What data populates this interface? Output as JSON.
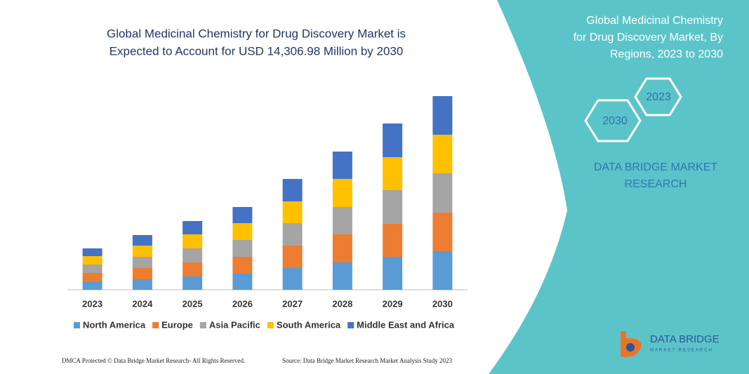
{
  "chart_data": {
    "type": "stacked_bar",
    "title": [
      "Global Medicinal Chemistry for Drug Discovery Market is",
      "Expected to Account for USD 14,306.98 Million by 2030"
    ],
    "categories": [
      "2023",
      "2024",
      "2025",
      "2026",
      "2027",
      "2028",
      "2029",
      "2030"
    ],
    "series": [
      {
        "name": "North America",
        "color": "#5b9bd5",
        "values": [
          12,
          15,
          19,
          23,
          31,
          39,
          47,
          55
        ]
      },
      {
        "name": "Europe",
        "color": "#ed7d31",
        "values": [
          12,
          16,
          20,
          24,
          32,
          40,
          47,
          55
        ]
      },
      {
        "name": "Asia Pacific",
        "color": "#a5a5a5",
        "values": [
          12,
          16,
          20,
          24,
          32,
          39,
          48,
          56
        ]
      },
      {
        "name": "South America",
        "color": "#ffc000",
        "values": [
          12,
          16,
          20,
          24,
          31,
          40,
          47,
          55
        ]
      },
      {
        "name": "Middle East and Africa",
        "color": "#4472c4",
        "values": [
          11,
          15,
          19,
          23,
          32,
          39,
          48,
          55
        ]
      }
    ],
    "legend": "bottom"
  },
  "panel": {
    "title": [
      "Global Medicinal Chemistry",
      "for Drug Discovery Market, By",
      "Regions, 2023 to 2030"
    ],
    "hex_labels": [
      "2023",
      "2030"
    ],
    "brand": [
      "DATA BRIDGE MARKET",
      "RESEARCH"
    ],
    "logo": "DATA BRIDGE",
    "logo_sub": "MARKET RESEARCH"
  },
  "footer": {
    "left": "DMCA Protected © Data Bridge Market Research- All Rights Reserved.",
    "right": "Source: Data Bridge Market Research  Market Analysis Study 2023"
  }
}
